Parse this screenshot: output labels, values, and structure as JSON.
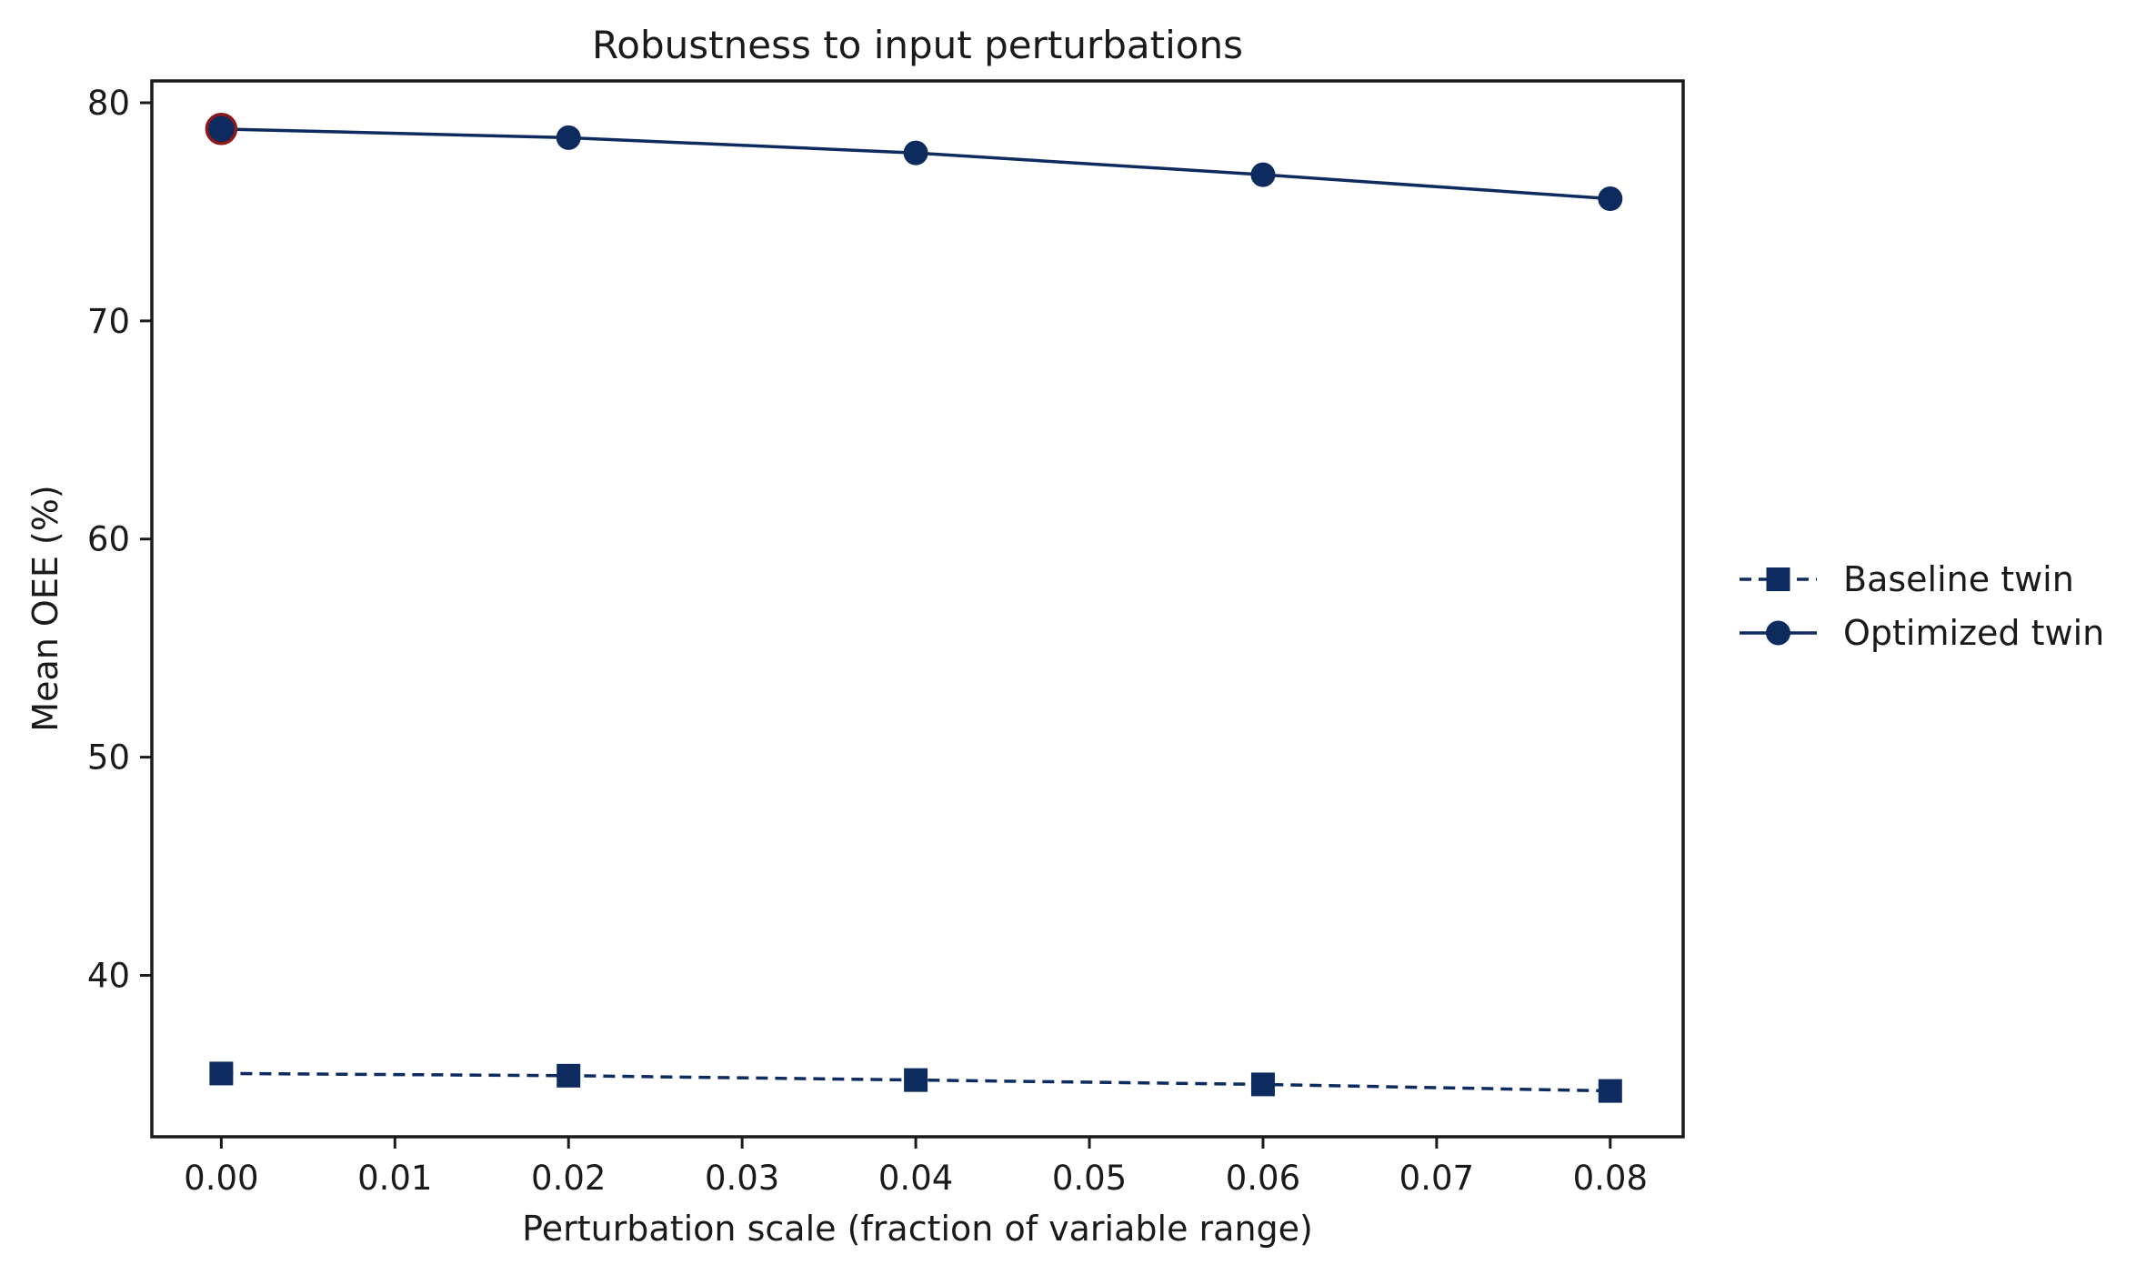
{
  "chart_data": {
    "type": "line",
    "title": "Robustness to input perturbations",
    "xlabel": "Perturbation scale (fraction of variable range)",
    "ylabel": "Mean OEE (%)",
    "xlim": [
      -0.004,
      0.0842
    ],
    "ylim": [
      32.6,
      81.0
    ],
    "x_ticks": [
      "0.00",
      "0.01",
      "0.02",
      "0.03",
      "0.04",
      "0.05",
      "0.06",
      "0.07",
      "0.08"
    ],
    "y_ticks": [
      "40",
      "50",
      "60",
      "70",
      "80"
    ],
    "grid": false,
    "legend_position": "right, outside plot",
    "series": [
      {
        "name": "Baseline twin",
        "style": "dashed",
        "marker": "square",
        "color": "#0d2b5e",
        "x": [
          0.0,
          0.02,
          0.04,
          0.06,
          0.08
        ],
        "values": [
          35.5,
          35.4,
          35.2,
          35.0,
          34.7
        ]
      },
      {
        "name": "Optimized twin",
        "style": "solid",
        "marker": "circle",
        "color": "#0d2b5e",
        "x": [
          0.0,
          0.02,
          0.04,
          0.06,
          0.08
        ],
        "values": [
          78.8,
          78.4,
          77.7,
          76.7,
          75.6
        ]
      }
    ],
    "highlight": {
      "series": "Optimized twin",
      "x": 0.0,
      "edge_color": "#8b1a1a"
    }
  }
}
